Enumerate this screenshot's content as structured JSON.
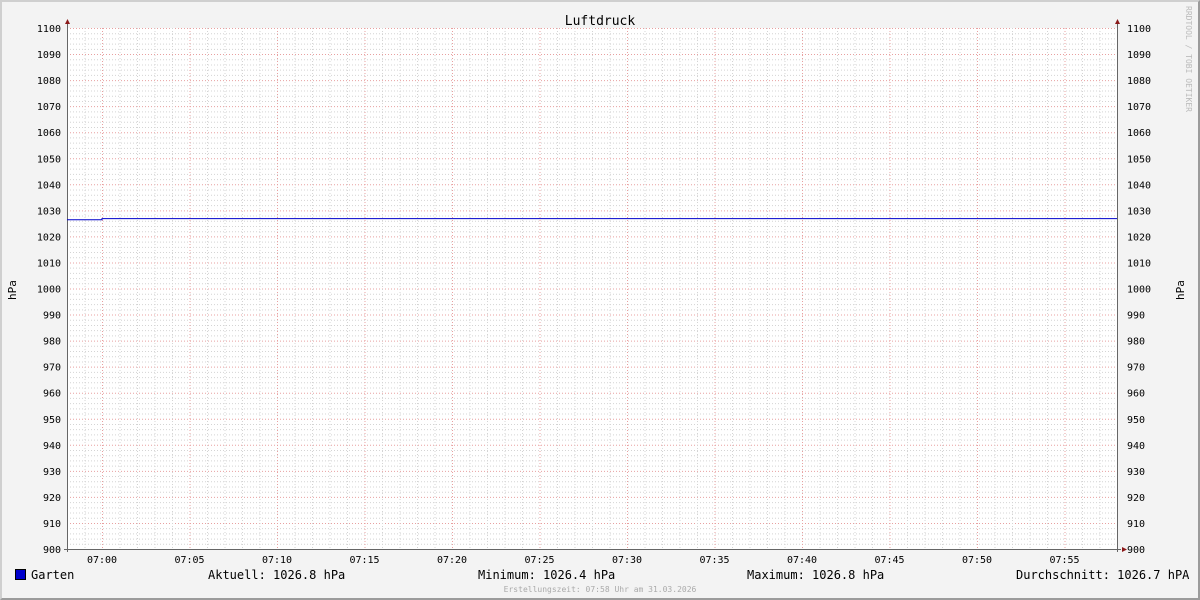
{
  "chart_data": {
    "type": "line",
    "title": "Luftdruck",
    "ylabel": "hPa",
    "ylabel_right": "hPa",
    "ylim": [
      900,
      1100
    ],
    "yticks": [
      900,
      910,
      920,
      930,
      940,
      950,
      960,
      970,
      980,
      990,
      1000,
      1010,
      1020,
      1030,
      1040,
      1050,
      1060,
      1070,
      1080,
      1090,
      1100
    ],
    "xlim": [
      "06:58",
      "07:58"
    ],
    "xticks": [
      "07:00",
      "07:05",
      "07:10",
      "07:15",
      "07:20",
      "07:25",
      "07:30",
      "07:35",
      "07:40",
      "07:45",
      "07:50",
      "07:55"
    ],
    "grid": true,
    "series": [
      {
        "name": "Garten",
        "color": "#0000cc",
        "x": [
          "06:58",
          "07:00",
          "07:00",
          "07:58"
        ],
        "values": [
          1026.4,
          1026.4,
          1026.8,
          1026.8
        ]
      }
    ],
    "watermark": "RRDTOOL / TOBI OETIKER"
  },
  "legend": {
    "series_name": "Garten",
    "aktuell": "Aktuell: 1026.8 hPa",
    "minimum": "Minimum: 1026.4 hPa",
    "maximum": "Maximum: 1026.8 hPa",
    "durchschnitt": "Durchschnitt: 1026.7 hPA"
  },
  "footer": "Erstellungszeit: 07:58 Uhr am 31.03.2026"
}
